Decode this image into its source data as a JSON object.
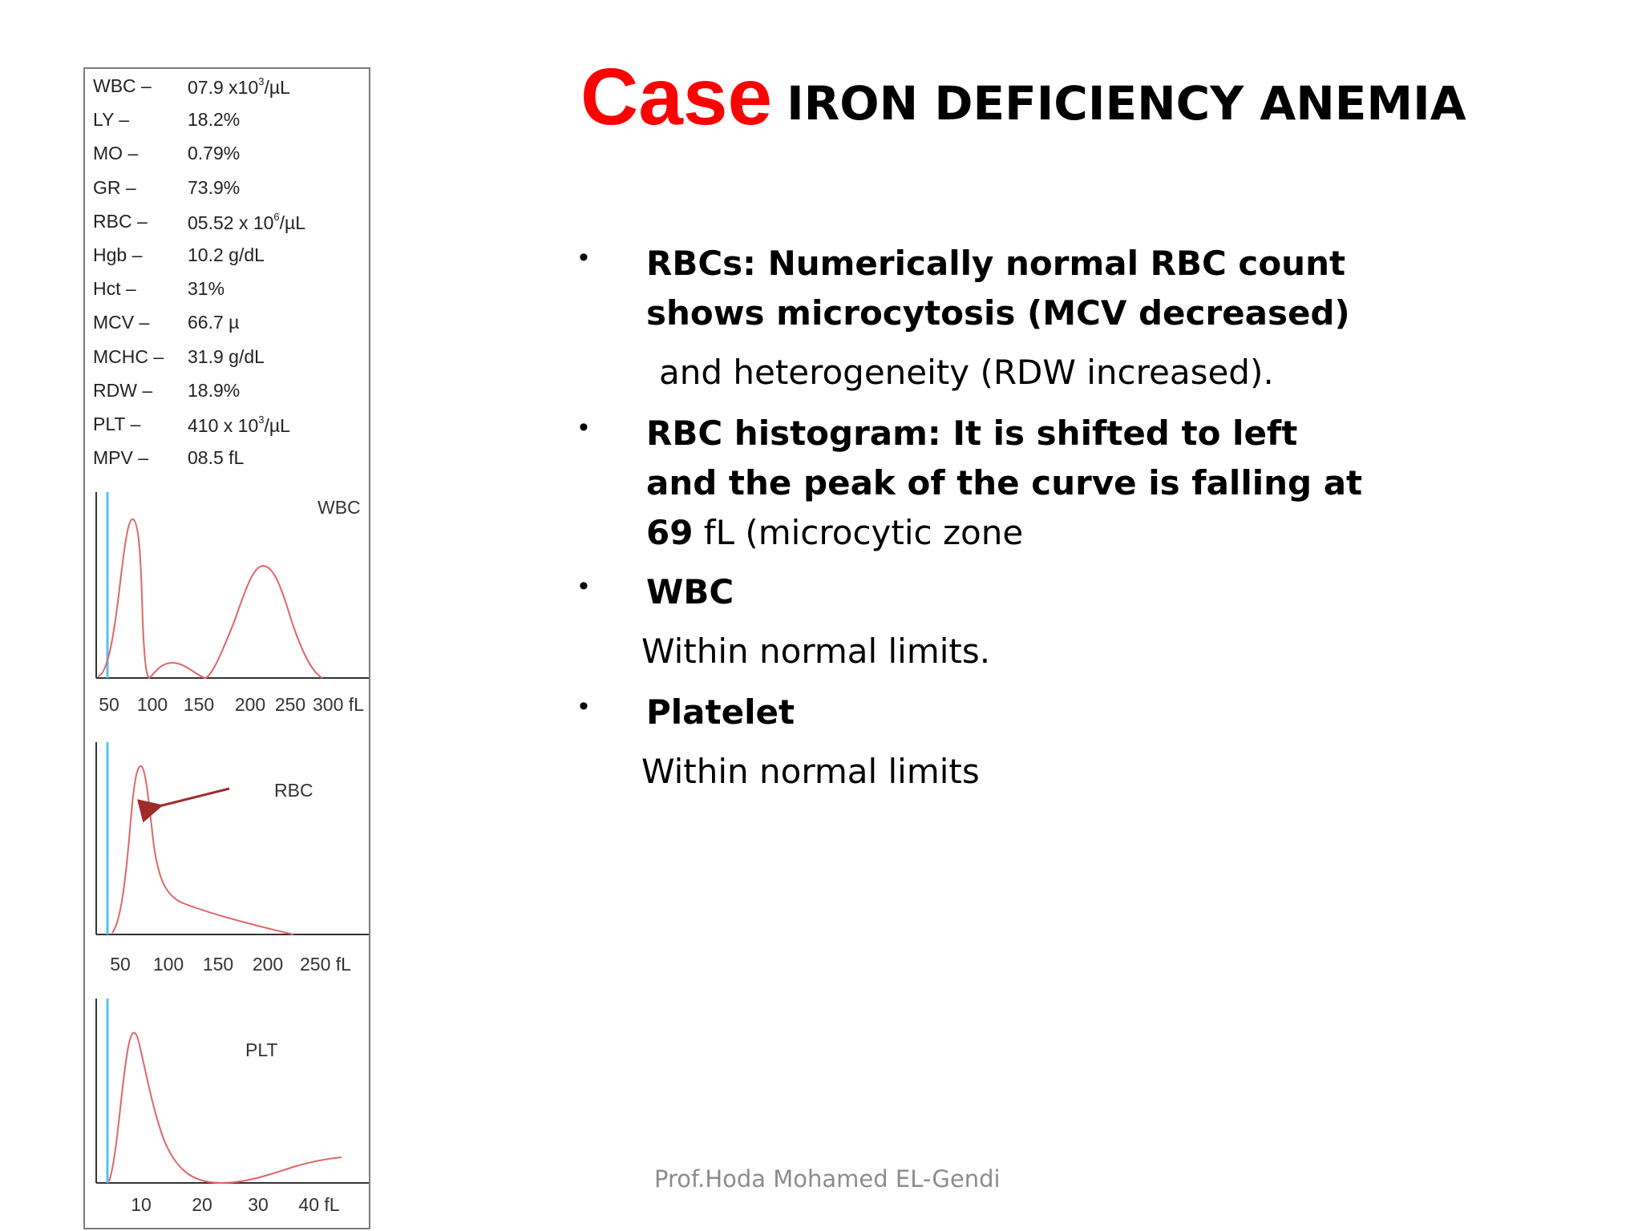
{
  "lab_values": [
    {
      "name": "WBC –",
      "value": "07.9 x10",
      "sup": "3",
      "unit": "/µL"
    },
    {
      "name": "LY –",
      "value": "18.2%",
      "sup": "",
      "unit": ""
    },
    {
      "name": "MO –",
      "value": "0.79%",
      "sup": "",
      "unit": ""
    },
    {
      "name": "GR –",
      "value": "73.9%",
      "sup": "",
      "unit": ""
    },
    {
      "name": "RBC –",
      "value": "05.52 x 10",
      "sup": "6",
      "unit": "/µL"
    },
    {
      "name": "Hgb –",
      "value": "10.2 g/dL",
      "sup": "",
      "unit": ""
    },
    {
      "name": "Hct –",
      "value": "31%",
      "sup": "",
      "unit": ""
    },
    {
      "name": "MCV –",
      "value": "66.7 µ",
      "sup": "",
      "unit": ""
    },
    {
      "name": "MCHC –",
      "value": "31.9 g/dL",
      "sup": "",
      "unit": ""
    },
    {
      "name": "RDW –",
      "value": "18.9%",
      "sup": "",
      "unit": ""
    },
    {
      "name": "PLT –",
      "value": "410 x 10",
      "sup": "3",
      "unit": "/µL"
    },
    {
      "name": "MPV –",
      "value": "08.5  fL",
      "sup": "",
      "unit": ""
    }
  ],
  "histograms": {
    "wbc": {
      "label": "WBC",
      "ticks": [
        "50",
        "100",
        "150",
        "200",
        "250",
        "300 fL"
      ]
    },
    "rbc": {
      "label": "RBC",
      "ticks": [
        "50",
        "100",
        "150",
        "200",
        "250 fL"
      ]
    },
    "plt": {
      "label": "PLT",
      "ticks": [
        "10",
        "20",
        "30",
        "40 fL"
      ]
    }
  },
  "colors": {
    "curve": "#e06666",
    "marker": "#4fc3f7",
    "arrow": "#9e2a2a",
    "title_accent": "#ff0000"
  },
  "title": {
    "case": "Case",
    "main": "IRON DEFICIENCY ANEMIA"
  },
  "bullets": {
    "b1_line1": "RBCs: Numerically normal RBC count",
    "b1_line2": "shows microcytosis (MCV decreased)",
    "b1_line3": "and heterogeneity (RDW increased).",
    "b2_line1": "RBC histogram: It is shifted to left",
    "b2_line2": "and the peak of the curve is falling at",
    "b2_line3_bold": "69",
    "b2_line3_rest": " fL (microcytic zone",
    "b3_head": "WBC",
    "b3_body": "Within normal limits.",
    "b4_head": "Platelet",
    "b4_body": "Within normal limits"
  },
  "footer": "Prof.Hoda  Mohamed EL-Gendi"
}
